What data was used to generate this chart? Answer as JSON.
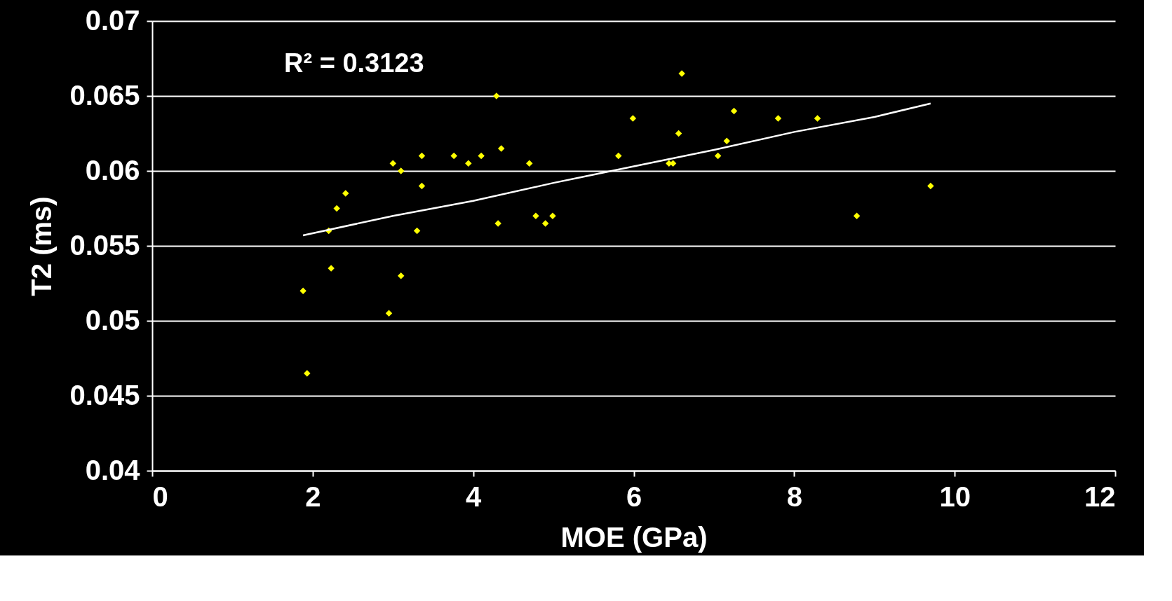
{
  "chart_data": {
    "type": "scatter",
    "xlabel": "MOE (GPa)",
    "ylabel": "T2 (ms)",
    "annotations": [
      "R² = 0.3123"
    ],
    "xlim": [
      0,
      12
    ],
    "xticks": [
      0,
      2,
      4,
      6,
      8,
      10,
      12
    ],
    "ylim": [
      0.04,
      0.07
    ],
    "yticks": [
      0.04,
      0.045,
      0.05,
      0.055,
      0.06,
      0.065,
      0.07
    ],
    "grid": "y",
    "marker": "diamond",
    "series": [
      {
        "type": "scatter",
        "color": "#ffff00",
        "x": [
          1.88,
          1.93,
          2.2,
          2.23,
          2.3,
          2.41,
          2.95,
          3.0,
          3.1,
          3.1,
          3.3,
          3.36,
          3.36,
          3.76,
          3.94,
          4.1,
          4.29,
          4.31,
          4.35,
          4.7,
          4.78,
          4.9,
          4.99,
          5.81,
          5.99,
          6.44,
          6.49,
          6.56,
          6.6,
          7.05,
          7.16,
          7.25,
          7.8,
          8.29,
          8.78,
          9.7
        ],
        "values": [
          0.052,
          0.0465,
          0.056,
          0.0535,
          0.0575,
          0.0585,
          0.0505,
          0.0605,
          0.06,
          0.053,
          0.056,
          0.061,
          0.059,
          0.061,
          0.0605,
          0.061,
          0.065,
          0.0565,
          0.0615,
          0.0605,
          0.057,
          0.0565,
          0.057,
          0.061,
          0.0635,
          0.0605,
          0.0605,
          0.0625,
          0.0665,
          0.061,
          0.062,
          0.064,
          0.0635,
          0.0635,
          0.057,
          0.059
        ]
      },
      {
        "type": "line",
        "color": "#ffffff",
        "line_style": "solid",
        "marker": "none",
        "x": [
          1.88,
          3.0,
          4.0,
          5.0,
          6.0,
          7.0,
          8.0,
          9.0,
          9.7
        ],
        "values": [
          0.0557,
          0.057,
          0.058,
          0.0592,
          0.0603,
          0.0614,
          0.0626,
          0.0636,
          0.0645
        ]
      }
    ]
  }
}
